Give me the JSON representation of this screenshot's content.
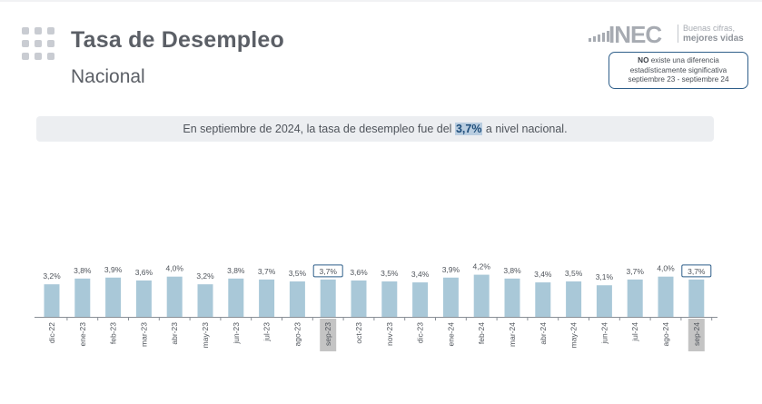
{
  "header": {
    "title": "Tasa de Desempleo",
    "subtitle": "Nacional"
  },
  "logo": {
    "text": "INEC",
    "tagline_1": "Buenas cifras,",
    "tagline_2": "mejores vidas"
  },
  "notice": {
    "bold": "NO",
    "rest_line1": " existe una diferencia",
    "line2": "estadísticamente significativa",
    "line3": "septiembre 23 - septiembre 24"
  },
  "banner": {
    "before": "En septiembre de 2024, la tasa de desempleo fue del ",
    "highlight": "3,7%",
    "after": " a nivel nacional."
  },
  "colors": {
    "bar": "#a9c8d8",
    "highlight_box": "#2f5f8a",
    "highlight_tick_bg": "#c4c4c4"
  },
  "chart_data": {
    "type": "bar",
    "categories": [
      "dic-22",
      "ene-23",
      "feb-23",
      "mar-23",
      "abr-23",
      "may-23",
      "jun-23",
      "jul-23",
      "ago-23",
      "sep-23",
      "oct-23",
      "nov-23",
      "dic-23",
      "ene-24",
      "feb-24",
      "mar-24",
      "abr-24",
      "may-24",
      "jun-24",
      "jul-24",
      "ago-24",
      "sep-24"
    ],
    "values": [
      3.2,
      3.8,
      3.9,
      3.6,
      4.0,
      3.2,
      3.8,
      3.7,
      3.5,
      3.7,
      3.6,
      3.5,
      3.4,
      3.9,
      4.2,
      3.8,
      3.4,
      3.5,
      3.1,
      3.7,
      4.0,
      3.7
    ],
    "labels": [
      "3,2%",
      "3,8%",
      "3,9%",
      "3,6%",
      "4,0%",
      "3,2%",
      "3,8%",
      "3,7%",
      "3,5%",
      "3,7%",
      "3,6%",
      "3,5%",
      "3,4%",
      "3,9%",
      "4,2%",
      "3,8%",
      "3,4%",
      "3,5%",
      "3,1%",
      "3,7%",
      "4,0%",
      "3,7%"
    ],
    "highlighted": [
      "sep-23",
      "sep-24"
    ],
    "ylim": [
      0,
      4.5
    ],
    "grid": false,
    "legend": "none"
  }
}
